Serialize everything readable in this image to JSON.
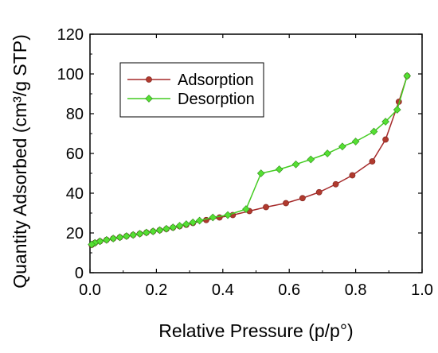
{
  "chart_data": {
    "type": "line",
    "xlabel": "Relative Pressure (p/p°)",
    "ylabel": "Quantity Adsorbed (cm³/g STP)",
    "xlim": [
      0,
      1.0
    ],
    "ylim": [
      0,
      120
    ],
    "xticks": [
      "0.0",
      "0.2",
      "0.4",
      "0.6",
      "0.8",
      "1.0"
    ],
    "yticks": [
      "0",
      "20",
      "40",
      "60",
      "80",
      "100",
      "120"
    ],
    "grid": false,
    "legend_position": "top-left",
    "series": [
      {
        "name": "Adsorption",
        "color": "#a52a2a",
        "marker_color": "#b03a2e",
        "marker": "circle",
        "x": [
          0.005,
          0.015,
          0.03,
          0.05,
          0.07,
          0.09,
          0.11,
          0.13,
          0.15,
          0.17,
          0.19,
          0.21,
          0.23,
          0.25,
          0.27,
          0.29,
          0.31,
          0.35,
          0.39,
          0.43,
          0.48,
          0.53,
          0.59,
          0.64,
          0.69,
          0.74,
          0.79,
          0.85,
          0.89,
          0.93,
          0.955
        ],
        "y": [
          14,
          15,
          15.8,
          16.5,
          17.2,
          17.8,
          18.4,
          19,
          19.6,
          20.2,
          20.8,
          21.4,
          22,
          22.7,
          23.4,
          24.1,
          25,
          26.5,
          27.8,
          29,
          31,
          33,
          35,
          37.5,
          40.5,
          44.5,
          49,
          56,
          67,
          86,
          99
        ]
      },
      {
        "name": "Desorption",
        "color": "#44cc22",
        "marker_color": "#55e033",
        "marker": "diamond",
        "x": [
          0.955,
          0.925,
          0.89,
          0.855,
          0.8,
          0.76,
          0.715,
          0.665,
          0.62,
          0.57,
          0.515,
          0.47,
          0.415,
          0.37,
          0.33,
          0.31,
          0.29,
          0.27,
          0.25,
          0.23,
          0.21,
          0.19,
          0.17,
          0.15,
          0.13,
          0.11,
          0.09,
          0.07,
          0.05,
          0.03,
          0.015,
          0.005
        ],
        "y": [
          99,
          82,
          76,
          71,
          66,
          63.5,
          60,
          57,
          54.5,
          52,
          50,
          32,
          29,
          27.8,
          26.2,
          25.3,
          24.4,
          23.6,
          22.8,
          22.1,
          21.4,
          20.8,
          20.2,
          19.6,
          19,
          18.4,
          17.8,
          17.2,
          16.5,
          15.8,
          15,
          14.2
        ]
      }
    ]
  }
}
